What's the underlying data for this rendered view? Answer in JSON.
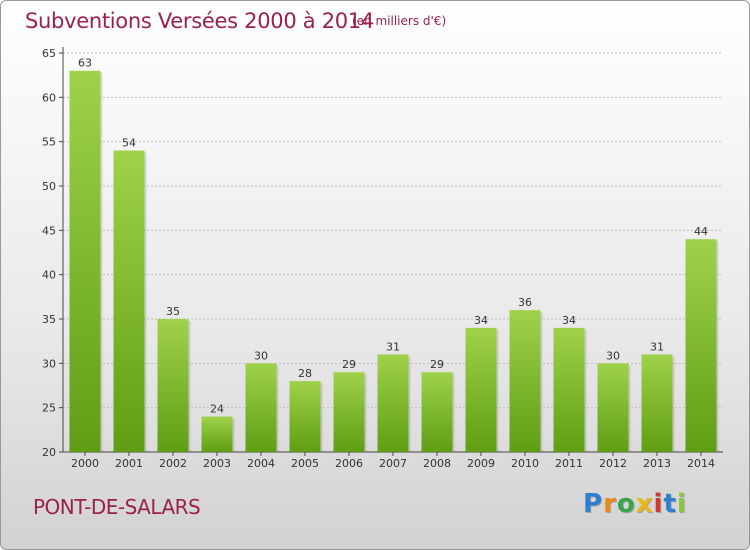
{
  "header": {
    "title": "Subventions Versées 2000 à 2014",
    "unit_note": "(en milliers d'€)"
  },
  "footer": {
    "commune": "PONT-DE-SALARS",
    "logo_text": "Proxiti",
    "logo_colors": [
      "#2e7fd0",
      "#e88a1a",
      "#3aa54a",
      "#e8b81a",
      "#d03a2e",
      "#2e7fd0",
      "#8cc63f"
    ]
  },
  "colors": {
    "accent": "#9b1f4f",
    "bar_light": "#9fd24a",
    "bar_dark": "#5f9e14",
    "axis": "#444444",
    "grid": "#bdbdbd"
  },
  "chart_data": {
    "type": "bar",
    "title": "Subventions Versées 2000 à 2014",
    "subtitle": "(en milliers d'€)",
    "xlabel": "",
    "ylabel": "",
    "categories": [
      "2000",
      "2001",
      "2002",
      "2003",
      "2004",
      "2005",
      "2006",
      "2007",
      "2008",
      "2009",
      "2010",
      "2011",
      "2012",
      "2013",
      "2014"
    ],
    "values": [
      63,
      54,
      35,
      24,
      30,
      28,
      29,
      31,
      29,
      34,
      36,
      34,
      30,
      31,
      44
    ],
    "ylim": [
      20,
      65
    ],
    "yticks": [
      20,
      25,
      30,
      35,
      40,
      45,
      50,
      55,
      60,
      65
    ],
    "grid": true,
    "legend": "none"
  }
}
